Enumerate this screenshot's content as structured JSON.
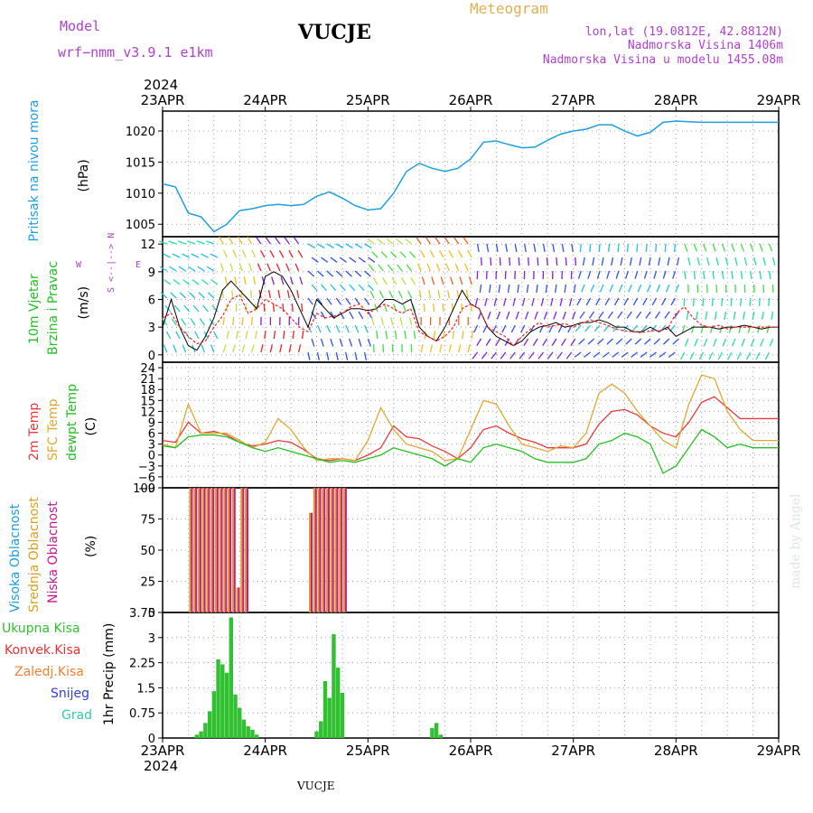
{
  "header": {
    "model_label": "Model",
    "model_name": "wrf−nmm_v3.9.1  e1km",
    "station": "VUCJE",
    "product": "Meteogram",
    "lonlat": "lon,lat (19.0812E, 42.8812N)",
    "elevation": "Nadmorska Visina 1406m",
    "model_elevation": "Nadmorska Visina u modelu 1455.08m",
    "footer_station": "VUCJE",
    "credit": "made by Angel"
  },
  "colors": {
    "pressure": "#1e9fe0",
    "temp2m": "#e83a3a",
    "sfc": "#e0a830",
    "dewpt": "#22c020",
    "cloud_high": "#18a0e0",
    "cloud_mid": "#d8a020",
    "cloud_low": "#c81890",
    "precip_total": "#30c030",
    "precip_conv": "#e83030",
    "precip_frz": "#f08030",
    "precip_snow": "#3040d8",
    "precip_grad": "#30c8b0",
    "wind_speed": "#000000",
    "gust": "#ff2020",
    "purple_text": "#b040d0",
    "product_text": "#e0b050"
  },
  "time_axis": {
    "year": "2024",
    "labels": [
      "23APR",
      "24APR",
      "25APR",
      "26APR",
      "27APR",
      "28APR",
      "29APR"
    ]
  },
  "chart_data": [
    {
      "type": "line",
      "panel": "pressure",
      "ylabel_main": "Pritisak na nivou mora",
      "ylabel_unit": "(hPa)",
      "x_hours": [
        0,
        3,
        6,
        9,
        12,
        15,
        18,
        21,
        24,
        27,
        30,
        33,
        36,
        39,
        42,
        45,
        48,
        51,
        54,
        57,
        60,
        63,
        66,
        69,
        72,
        75,
        78,
        81,
        84,
        87,
        90,
        93,
        96,
        99,
        102,
        105,
        108,
        111,
        114,
        117,
        120,
        123,
        126,
        129,
        132,
        135,
        138,
        141,
        144
      ],
      "series": [
        {
          "values": [
            1011.5,
            1011,
            1006.8,
            1006.2,
            1003.8,
            1005,
            1007.2,
            1007.5,
            1008,
            1008.2,
            1008,
            1008.2,
            1009.5,
            1010.2,
            1009.2,
            1008,
            1007.3,
            1007.5,
            1010,
            1013.5,
            1014.8,
            1014,
            1013.5,
            1014,
            1015.5,
            1018.2,
            1018.4,
            1017.8,
            1017.3,
            1017.4,
            1018.5,
            1019.5,
            1020,
            1020.3,
            1021,
            1021,
            1020,
            1019.2,
            1019.8,
            1021.4,
            1021.6,
            1021.5,
            1021.4,
            1021.4,
            1021.4,
            1021.4,
            1021.4,
            1021.4,
            1021.4
          ]
        }
      ],
      "y_ticks": [
        1005,
        1010,
        1015,
        1020
      ],
      "ylim": [
        1003,
        1023.2
      ]
    },
    {
      "type": "line",
      "panel": "wind",
      "ylabel_main": "10m Vjetar",
      "ylabel_sub": "Brzina i Pravac",
      "ylabel_unit": "(m/s)",
      "compass": [
        "N",
        "S",
        "W",
        "E",
        "<--|-->"
      ],
      "y_ticks": [
        0,
        3,
        6,
        9,
        12
      ],
      "ylim": [
        -0.8,
        12.8
      ],
      "x_hours": [
        0,
        2,
        4,
        6,
        8,
        10,
        12,
        14,
        16,
        18,
        20,
        22,
        24,
        26,
        28,
        30,
        32,
        34,
        36,
        38,
        40,
        42,
        44,
        46,
        48,
        50,
        52,
        54,
        56,
        58,
        60,
        62,
        64,
        66,
        68,
        70,
        72,
        74,
        76,
        78,
        80,
        82,
        84,
        86,
        88,
        90,
        92,
        94,
        96,
        98,
        100,
        102,
        104,
        106,
        108,
        110,
        112,
        114,
        116,
        118,
        120,
        122,
        124,
        126,
        128,
        130,
        132,
        134,
        136,
        138,
        140,
        142,
        144
      ],
      "series": [
        {
          "values": [
            3,
            6,
            3,
            1,
            0.5,
            2,
            4,
            7,
            8,
            7,
            6,
            5,
            8.5,
            9,
            8.5,
            7,
            5,
            3,
            6,
            5,
            4,
            4.5,
            5,
            5,
            4.8,
            5,
            6,
            6,
            5.5,
            6,
            3,
            2,
            1.5,
            3,
            5,
            7,
            5.5,
            5,
            3,
            2,
            1.5,
            1,
            1.5,
            2.5,
            3,
            3.2,
            3.5,
            3,
            3.2,
            3.5,
            3.5,
            3.8,
            3.5,
            3,
            3,
            2.5,
            2.5,
            3,
            2.5,
            3,
            2,
            2.5,
            3,
            3,
            3,
            2.8,
            3,
            3,
            3.2,
            3,
            2.8,
            3,
            3
          ]
        },
        {
          "values": [
            4,
            4.5,
            3,
            2,
            1.2,
            1.5,
            3,
            4.2,
            6,
            6.5,
            4.5,
            5,
            6,
            5.5,
            5,
            4,
            3,
            2.5,
            4.5,
            4,
            4.2,
            4.5,
            5.2,
            5.5,
            4.5,
            5,
            5.5,
            5,
            4.5,
            5,
            2.5,
            2,
            1.5,
            2,
            3,
            5,
            5.5,
            5,
            3,
            2.5,
            2,
            1,
            2,
            2.8,
            3.5,
            3,
            3.2,
            3.4,
            3,
            3.4,
            3.8,
            3.5,
            3.2,
            2.8,
            2.6,
            2.5,
            2.4,
            2.6,
            2.6,
            2.8,
            4.5,
            5.2,
            4,
            3.2,
            3,
            3.2,
            2.8,
            3,
            3,
            3,
            3,
            3,
            3
          ]
        }
      ]
    },
    {
      "type": "line",
      "panel": "temperature",
      "ylabel_main": "2m Temp",
      "ylabel_sub": "SFC Temp",
      "ylabel_sub2": "dewpt Temp",
      "ylabel_unit": "(C)",
      "y_ticks": [
        -9,
        -6,
        -3,
        0,
        3,
        6,
        9,
        12,
        15,
        18,
        21,
        24
      ],
      "ylim": [
        -9,
        25.5
      ],
      "x_hours": [
        0,
        3,
        6,
        9,
        12,
        15,
        18,
        21,
        24,
        27,
        30,
        33,
        36,
        39,
        42,
        45,
        48,
        51,
        54,
        57,
        60,
        63,
        66,
        69,
        72,
        75,
        78,
        81,
        84,
        87,
        90,
        93,
        96,
        99,
        102,
        105,
        108,
        111,
        114,
        117,
        120,
        123,
        126,
        129,
        132,
        135,
        138,
        141,
        144
      ],
      "series": [
        {
          "name": "2m Temp",
          "values": [
            4,
            3.5,
            9,
            6,
            6.5,
            5.5,
            3.5,
            2.5,
            3,
            4,
            3.5,
            1.5,
            -1,
            -1.5,
            -1,
            -1.5,
            0,
            2,
            8,
            5,
            4.5,
            2.5,
            1,
            -1,
            2,
            7,
            8,
            6,
            4.5,
            3.5,
            2,
            2,
            2,
            3,
            8.5,
            12,
            12.5,
            11,
            8,
            6,
            5,
            9,
            14.5,
            16,
            13,
            10,
            10,
            10,
            10
          ]
        },
        {
          "name": "SFC Temp",
          "values": [
            3,
            2,
            14,
            6,
            6,
            6,
            4,
            2,
            3.5,
            10,
            7,
            2,
            -1.5,
            -1,
            -1,
            -1.5,
            4,
            13,
            7,
            3,
            2,
            1,
            -1.5,
            -1,
            7,
            15,
            14,
            8,
            3,
            2,
            1,
            2.5,
            2,
            6,
            17,
            19.5,
            17,
            12,
            8,
            4,
            2,
            14,
            22,
            21,
            12,
            7,
            4,
            4,
            4
          ]
        },
        {
          "name": "dewpt Temp",
          "values": [
            2.5,
            2,
            5,
            5.5,
            5.5,
            5,
            3.5,
            2,
            1,
            2,
            1,
            0,
            -1,
            -2,
            -1.5,
            -2,
            -1,
            0,
            2,
            1,
            0,
            -1,
            -3,
            -1,
            -2,
            2,
            3,
            2,
            1,
            -1,
            -2,
            -2,
            -2,
            -1,
            3,
            4,
            6,
            5,
            3,
            -5,
            -3,
            2,
            7,
            5,
            2,
            3,
            2,
            2,
            2
          ]
        }
      ]
    },
    {
      "type": "bar",
      "panel": "cloud",
      "ylabel_main": "Visoka Oblacnost",
      "ylabel_sub": "Srednja Oblacnost",
      "ylabel_sub2": "Niska Oblacnost",
      "ylabel_unit": "(%)",
      "y_ticks": [
        0,
        25,
        50,
        75,
        100
      ],
      "ylim": [
        0,
        100
      ],
      "x_hours": [
        6,
        7,
        8,
        9,
        10,
        11,
        12,
        13,
        14,
        15,
        16,
        17,
        18,
        19,
        20,
        21,
        22,
        24,
        25,
        26,
        27,
        28,
        30,
        32,
        34,
        35,
        36,
        37,
        38,
        39,
        40,
        41,
        42,
        43,
        44,
        45,
        46,
        47,
        48,
        50,
        52,
        54,
        56,
        58,
        60,
        61,
        62,
        63,
        64,
        66,
        68,
        70,
        72,
        78,
        84,
        90,
        96,
        102,
        108,
        114,
        120,
        126,
        132
      ],
      "series": [
        {
          "name": "Visoka Oblacnost",
          "values": [
            0,
            0,
            0,
            0,
            0,
            0,
            0,
            0,
            0,
            0,
            0,
            0,
            0,
            0,
            0,
            0,
            0,
            0,
            0,
            0,
            0,
            0,
            0,
            0,
            0,
            0,
            0,
            0,
            0,
            0,
            0,
            0,
            0,
            0,
            0,
            0,
            0,
            0,
            0,
            0,
            0,
            0,
            0,
            0,
            0,
            0,
            0,
            0,
            0,
            0,
            0,
            0,
            0,
            0,
            0,
            0,
            0,
            0,
            0,
            0,
            0,
            0,
            0
          ]
        },
        {
          "name": "Srednja Oblacnost",
          "values": [
            100,
            100,
            100,
            100,
            100,
            100,
            100,
            100,
            100,
            100,
            100,
            20,
            100,
            100,
            0,
            0,
            0,
            0,
            0,
            0,
            0,
            0,
            0,
            0,
            80,
            100,
            100,
            100,
            100,
            100,
            100,
            100,
            100,
            0,
            0,
            0,
            0,
            0,
            0,
            0,
            0,
            0,
            0,
            0,
            0,
            0,
            0,
            0,
            0,
            0,
            0,
            0,
            0,
            0,
            0,
            0,
            0,
            0,
            0,
            0,
            0,
            0,
            0
          ]
        },
        {
          "name": "Niska Oblacnost",
          "values": [
            100,
            100,
            100,
            100,
            100,
            100,
            100,
            100,
            100,
            100,
            100,
            20,
            100,
            100,
            0,
            0,
            0,
            0,
            0,
            0,
            0,
            0,
            0,
            0,
            80,
            100,
            100,
            100,
            100,
            100,
            100,
            100,
            100,
            0,
            0,
            0,
            0,
            0,
            0,
            0,
            0,
            0,
            0,
            0,
            0,
            0,
            0,
            0,
            0,
            0,
            0,
            0,
            0,
            0,
            0,
            0,
            0,
            0,
            0,
            0,
            0,
            0,
            0
          ]
        }
      ]
    },
    {
      "type": "bar",
      "panel": "precip",
      "ylabel_unit": "1hr Precip (mm)",
      "legend": [
        "Ukupna Kisa",
        "Konvek.Kisa",
        "Zaledj.Kisa",
        "Snijeg",
        "Grad"
      ],
      "y_ticks": [
        0,
        0.75,
        1.5,
        2.25,
        3,
        3.75
      ],
      "y_tick_labels": [
        "0",
        "0.75",
        "1.5",
        "2.25",
        "3",
        "3.75"
      ],
      "ylim": [
        0,
        3.75
      ],
      "x_hours": [
        8,
        9,
        10,
        11,
        12,
        13,
        14,
        15,
        16,
        17,
        18,
        19,
        20,
        21,
        22,
        36,
        37,
        38,
        39,
        40,
        41,
        42,
        63,
        64,
        65
      ],
      "series": [
        {
          "name": "Ukupna Kisa",
          "values": [
            0.1,
            0.2,
            0.45,
            0.8,
            1.4,
            2.35,
            2.2,
            1.95,
            3.6,
            1.3,
            0.9,
            0.55,
            0.35,
            0.25,
            0.1,
            0.2,
            0.5,
            1.7,
            1.2,
            3.1,
            2.1,
            1.35,
            0.3,
            0.45,
            0.1
          ]
        }
      ]
    }
  ]
}
